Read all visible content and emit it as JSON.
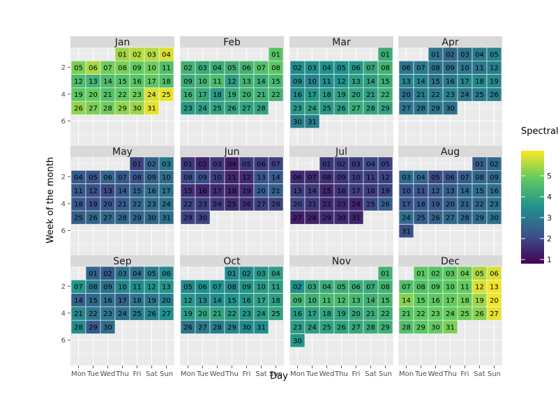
{
  "chart_data": {
    "type": "heatmap",
    "title": "",
    "xlabel": "Day",
    "ylabel": "Week of the month",
    "x_categories": [
      "Mon",
      "Tue",
      "Wed",
      "Thu",
      "Fri",
      "Sat",
      "Sun"
    ],
    "y_ticks": [
      "2",
      "4",
      "6"
    ],
    "colormap": "viridis",
    "color_range": [
      0.8,
      6.2
    ],
    "grid": true,
    "legend": {
      "title": "Spectral",
      "ticks": [
        "1",
        "2",
        "3",
        "4",
        "5"
      ],
      "placement": "right"
    },
    "panels": [
      {
        "month": "Jan",
        "first_weekday": 3,
        "days": 31,
        "values": [
          5.4,
          5.6,
          5.6,
          5.9,
          5.1,
          5.5,
          5.0,
          5.1,
          4.9,
          5.0,
          4.6,
          4.5,
          4.3,
          4.5,
          4.6,
          4.7,
          4.8,
          4.6,
          4.8,
          4.9,
          4.6,
          4.8,
          5.0,
          5.9,
          6.0,
          5.3,
          5.1,
          5.0,
          5.3,
          5.4,
          6.0
        ]
      },
      {
        "month": "Feb",
        "first_weekday": 6,
        "days": 28,
        "values": [
          4.7,
          4.3,
          4.1,
          4.1,
          4.2,
          4.3,
          4.6,
          4.8,
          4.1,
          4.3,
          4.5,
          3.8,
          4.3,
          4.1,
          4.4,
          4.2,
          4.0,
          3.7,
          4.1,
          4.2,
          4.2,
          4.3,
          3.7,
          3.8,
          3.9,
          3.9,
          3.9,
          3.9
        ]
      },
      {
        "month": "Mar",
        "first_weekday": 6,
        "days": 31,
        "values": [
          4.1,
          3.4,
          3.5,
          3.5,
          3.5,
          3.6,
          4.0,
          4.3,
          3.3,
          3.2,
          3.4,
          3.5,
          3.8,
          3.8,
          4.1,
          3.4,
          3.6,
          3.7,
          3.8,
          3.9,
          3.8,
          4.2,
          3.7,
          3.8,
          3.7,
          3.8,
          4.1,
          3.9,
          3.9,
          3.1,
          3.1
        ]
      },
      {
        "month": "Apr",
        "first_weekday": 2,
        "days": 30,
        "values": [
          2.9,
          2.6,
          2.8,
          3.0,
          3.2,
          2.9,
          3.0,
          2.8,
          2.8,
          2.9,
          2.9,
          3.1,
          3.2,
          3.2,
          2.9,
          3.0,
          3.2,
          3.3,
          3.3,
          2.8,
          3.0,
          3.0,
          3.1,
          2.9,
          3.0,
          3.1,
          2.9,
          2.9,
          2.9,
          2.8
        ]
      },
      {
        "month": "May",
        "first_weekday": 4,
        "days": 31,
        "values": [
          1.9,
          2.5,
          2.9,
          2.4,
          2.2,
          2.6,
          2.3,
          2.2,
          2.5,
          2.7,
          2.3,
          2.1,
          2.0,
          2.3,
          2.5,
          2.7,
          2.8,
          2.3,
          2.1,
          2.2,
          2.3,
          2.6,
          2.7,
          2.8,
          2.4,
          2.6,
          2.6,
          2.6,
          2.5,
          2.6,
          2.7
        ]
      },
      {
        "month": "Jun",
        "first_weekday": 0,
        "days": 30,
        "values": [
          1.7,
          1.4,
          1.7,
          1.3,
          1.8,
          1.8,
          1.9,
          2.0,
          2.1,
          1.8,
          1.4,
          1.5,
          2.2,
          2.3,
          1.6,
          1.4,
          1.5,
          1.4,
          1.5,
          2.3,
          2.4,
          1.9,
          1.8,
          1.7,
          1.5,
          1.6,
          1.8,
          1.9,
          1.9,
          1.9
        ]
      },
      {
        "month": "Jul",
        "first_weekday": 2,
        "days": 31,
        "values": [
          1.7,
          1.8,
          1.8,
          2.0,
          1.9,
          1.5,
          1.5,
          1.6,
          1.7,
          1.8,
          1.8,
          1.9,
          1.8,
          1.7,
          1.4,
          1.6,
          1.8,
          1.8,
          1.9,
          1.9,
          1.7,
          1.5,
          1.5,
          1.4,
          2.0,
          2.4,
          1.3,
          1.4,
          1.5,
          1.5,
          1.4
        ]
      },
      {
        "month": "Aug",
        "first_weekday": 5,
        "days": 31,
        "values": [
          2.4,
          2.6,
          2.7,
          2.6,
          2.0,
          2.2,
          2.4,
          2.6,
          2.6,
          2.2,
          2.1,
          2.3,
          2.4,
          2.6,
          2.7,
          2.8,
          2.2,
          2.3,
          2.3,
          2.4,
          2.5,
          2.6,
          2.8,
          2.7,
          2.4,
          2.5,
          2.6,
          2.6,
          2.7,
          2.8,
          2.1
        ]
      },
      {
        "month": "Sep",
        "first_weekday": 1,
        "days": 30,
        "values": [
          2.6,
          2.3,
          2.9,
          2.8,
          3.1,
          3.3,
          3.6,
          3.0,
          2.8,
          3.3,
          3.4,
          3.5,
          3.6,
          2.5,
          2.6,
          2.8,
          2.4,
          2.9,
          2.9,
          3.1,
          3.3,
          2.9,
          2.9,
          2.8,
          3.0,
          3.2,
          3.5,
          3.4,
          2.3,
          2.7
        ]
      },
      {
        "month": "Oct",
        "first_weekday": 3,
        "days": 31,
        "values": [
          3.3,
          3.4,
          3.6,
          3.8,
          3.3,
          3.5,
          3.5,
          3.3,
          3.6,
          3.7,
          3.8,
          3.6,
          3.3,
          3.4,
          3.5,
          3.6,
          3.8,
          3.8,
          3.7,
          3.9,
          3.9,
          3.7,
          3.6,
          3.7,
          3.9,
          2.9,
          3.0,
          3.1,
          3.2,
          3.3,
          3.4
        ]
      },
      {
        "month": "Nov",
        "first_weekday": 6,
        "days": 30,
        "values": [
          4.3,
          3.5,
          4.0,
          4.1,
          4.2,
          4.1,
          4.1,
          4.3,
          4.3,
          4.2,
          4.4,
          4.5,
          4.4,
          4.2,
          4.4,
          3.7,
          3.8,
          3.9,
          3.9,
          4.0,
          4.1,
          4.2,
          3.8,
          3.8,
          3.9,
          3.9,
          4.0,
          4.1,
          4.2,
          3.6
        ]
      },
      {
        "month": "Dec",
        "first_weekday": 1,
        "days": 31,
        "values": [
          4.8,
          4.7,
          4.8,
          5.0,
          5.5,
          5.9,
          4.6,
          4.6,
          4.7,
          4.8,
          4.9,
          5.9,
          6.1,
          5.2,
          4.8,
          4.8,
          4.9,
          5.0,
          5.4,
          6.1,
          4.7,
          4.8,
          4.9,
          4.9,
          5.0,
          5.2,
          6.0,
          4.6,
          4.8,
          4.9,
          5.1
        ]
      }
    ]
  }
}
